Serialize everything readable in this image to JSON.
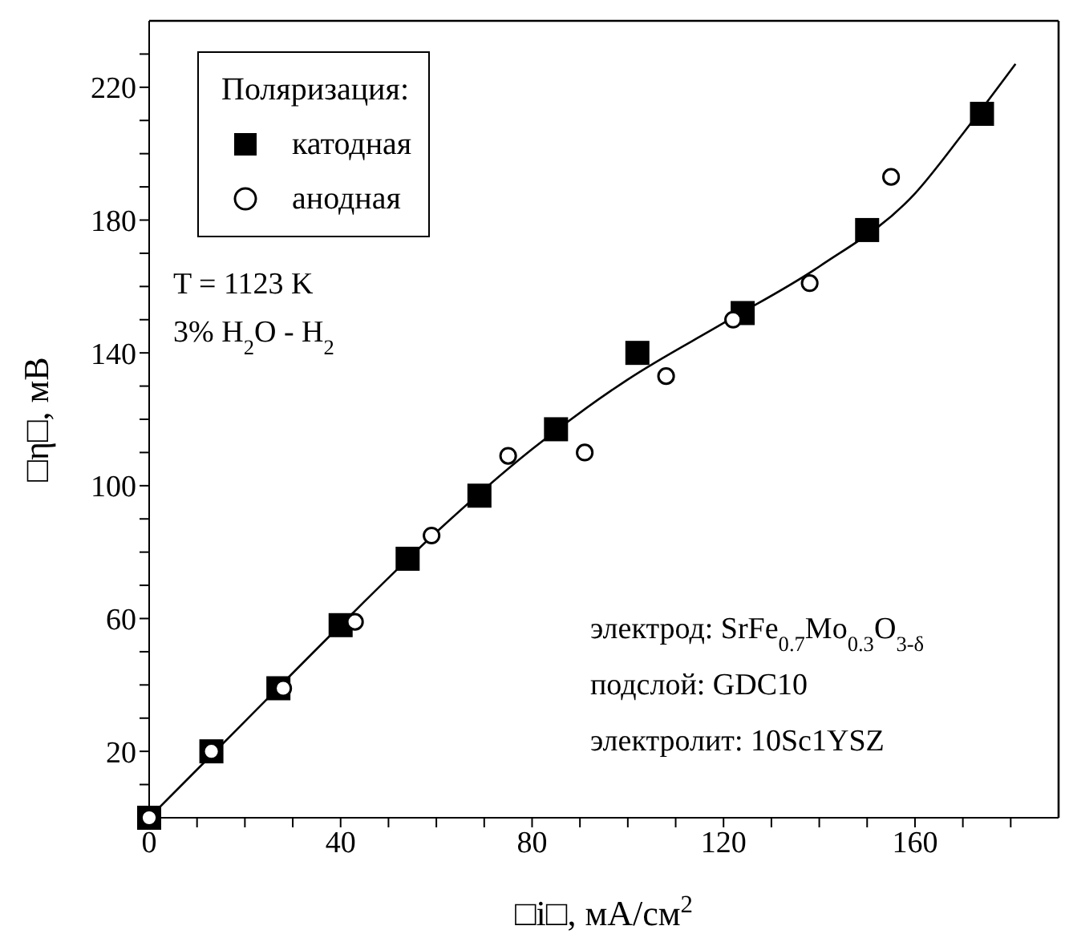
{
  "chart_data": {
    "type": "scatter",
    "xlabel": "□i□, мА/см$^{2}$",
    "ylabel": "□η□, мВ",
    "legend_title": "Поляризация:",
    "legend": "top left",
    "grid": false,
    "xlim": [
      0,
      190
    ],
    "ylim": [
      0,
      240
    ],
    "xticks": [
      0,
      {
        "value": 10,
        "label": null
      },
      {
        "value": 20,
        "label": null
      },
      {
        "value": 30,
        "label": null
      },
      40,
      {
        "value": 50,
        "label": null
      },
      {
        "value": 60,
        "label": null
      },
      {
        "value": 70,
        "label": null
      },
      80,
      {
        "value": 90,
        "label": null
      },
      {
        "value": 100,
        "label": null
      },
      {
        "value": 110,
        "label": null
      },
      120,
      {
        "value": 130,
        "label": null
      },
      {
        "value": 140,
        "label": null
      },
      {
        "value": 150,
        "label": null
      },
      160,
      {
        "value": 170,
        "label": null
      },
      {
        "value": 180,
        "label": null
      }
    ],
    "yticks": [
      {
        "value": 0,
        "label": null
      },
      {
        "value": 10,
        "label": null
      },
      20,
      {
        "value": 30,
        "label": null
      },
      {
        "value": 40,
        "label": null
      },
      {
        "value": 50,
        "label": null
      },
      60,
      {
        "value": 70,
        "label": null
      },
      {
        "value": 80,
        "label": null
      },
      {
        "value": 90,
        "label": null
      },
      100,
      {
        "value": 110,
        "label": null
      },
      {
        "value": 120,
        "label": null
      },
      {
        "value": 130,
        "label": null
      },
      140,
      {
        "value": 150,
        "label": null
      },
      {
        "value": 160,
        "label": null
      },
      {
        "value": 170,
        "label": null
      },
      180,
      {
        "value": 190,
        "label": null
      },
      {
        "value": 200,
        "label": null
      },
      {
        "value": 210,
        "label": null
      },
      220,
      {
        "value": 230,
        "label": null
      }
    ],
    "series": [
      {
        "name": "катодная",
        "marker": "square",
        "color": "#000000",
        "x": [
          0,
          13,
          27,
          40,
          54,
          69,
          85,
          102,
          124,
          150,
          174
        ],
        "values": [
          0,
          20,
          39,
          58,
          78,
          97,
          117,
          140,
          152,
          177,
          212
        ]
      },
      {
        "name": "анодная",
        "marker": "circle",
        "color": "#000000",
        "x": [
          0,
          13,
          28,
          43,
          59,
          75,
          91,
          108,
          122,
          138,
          155
        ],
        "values": [
          0,
          20,
          39,
          59,
          85,
          109,
          110,
          133,
          150,
          161,
          193
        ]
      },
      {
        "type": "line",
        "marker": "none",
        "color": "#000000",
        "x": [
          0,
          20,
          40,
          60,
          80,
          100,
          120,
          140,
          160,
          170,
          181
        ],
        "values": [
          0,
          29,
          58,
          86,
          111,
          132,
          149,
          166,
          188,
          206,
          227
        ]
      }
    ],
    "annotations": [
      "T = 1123 K",
      "3% H$_{2}$O - H$_{2}$",
      "электрод: SrFe$_{0.7}$Mo$_{0.3}$O$_{3-δ}$",
      "подслой: GDC10",
      "электролит: 10Sc1YSZ"
    ]
  }
}
